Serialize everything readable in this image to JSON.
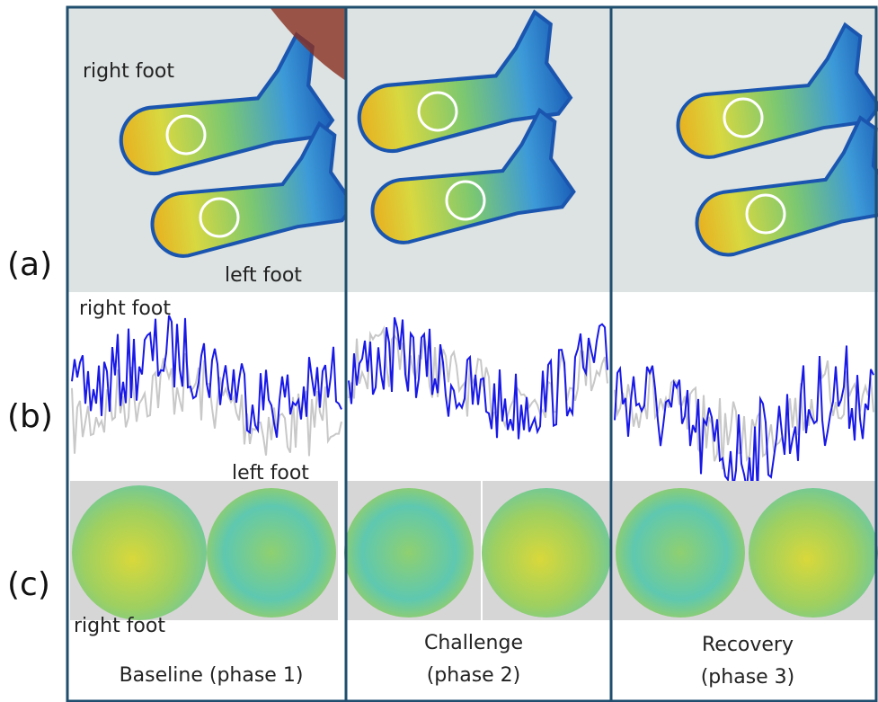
{
  "row_labels": [
    "(a)",
    "(b)",
    "(c)"
  ],
  "panel_a": {
    "right_foot": "right foot",
    "left_foot": "left foot"
  },
  "panel_b": {
    "right_foot": "right foot",
    "left_foot": "left foot"
  },
  "panel_c": {
    "right_foot": "right foot"
  },
  "columns": [
    {
      "caption": [
        "Baseline (phase 1)"
      ]
    },
    {
      "caption": [
        "Challenge",
        "(phase 2)"
      ]
    },
    {
      "caption": [
        "Recovery",
        "(phase 3)"
      ]
    }
  ]
}
